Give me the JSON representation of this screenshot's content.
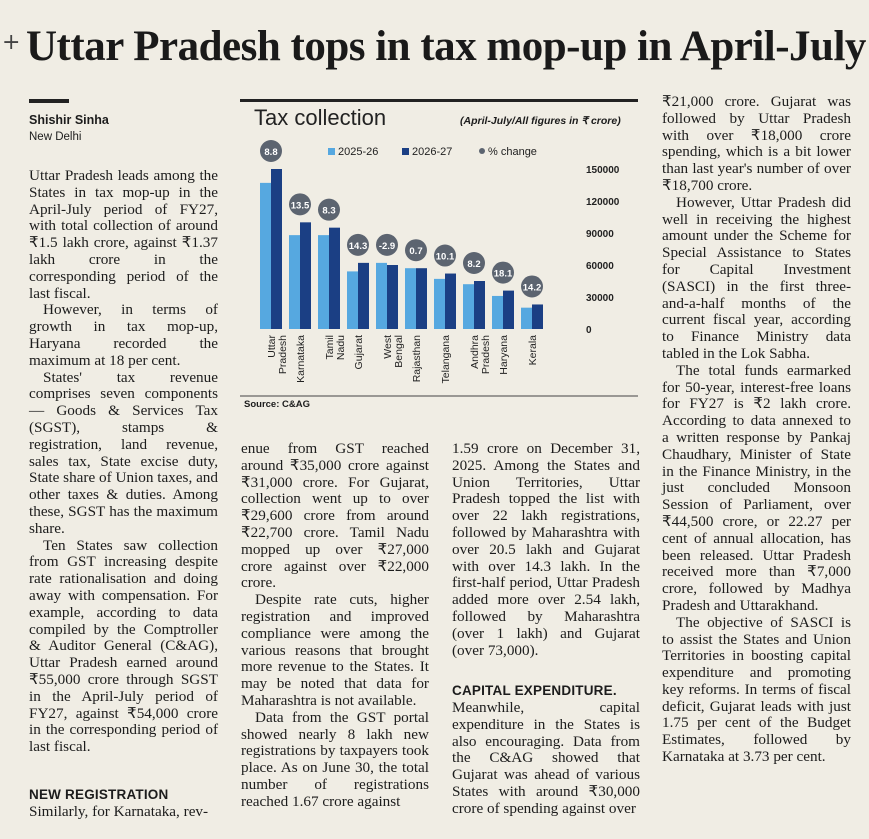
{
  "headline": {
    "marker": "+",
    "text": "Uttar Pradesh tops in tax mop-up in April-July"
  },
  "byline": {
    "author": "Shishir Sinha",
    "place": "New Delhi"
  },
  "chart": {
    "title": "Tax collection",
    "note": "(April-July/All figures in ₹ crore)",
    "source": "Source: C&AG",
    "colors": {
      "series1": "#56a8e0",
      "series2": "#1b3f84",
      "change": "#5c6470"
    }
  },
  "chart_data": {
    "type": "bar",
    "categories": [
      "Uttar Pradesh",
      "Karnataka",
      "Tamil Nadu",
      "Gujarat",
      "West Bengal",
      "Rajasthan",
      "Telangana",
      "Andhra Pradesh",
      "Haryana",
      "Kerala"
    ],
    "series": [
      {
        "name": "2025-26",
        "values": [
          137000,
          88000,
          88000,
          54000,
          62000,
          57000,
          47000,
          42000,
          31000,
          20000
        ]
      },
      {
        "name": "2026-27",
        "values": [
          150000,
          100000,
          95000,
          62000,
          60000,
          57000,
          52000,
          45000,
          36000,
          23000
        ]
      }
    ],
    "change_label": "% change",
    "change": [
      "8.8",
      "13.5",
      "8.3",
      "14.3",
      "-2.9",
      "0.7",
      "10.1",
      "8.2",
      "18.1",
      "14.2"
    ],
    "yticks": [
      "150000",
      "120000",
      "90000",
      "60000",
      "30000",
      "0"
    ],
    "ylim": [
      0,
      150000
    ],
    "legend_position": "top"
  },
  "col1": {
    "p1": "Uttar Pradesh leads among the States in tax mop-up in the April-July period of FY27, with total collection of around ₹1.5 lakh crore, against ₹1.37 lakh crore in the corresponding period of the last fiscal.",
    "p2": "However, in terms of growth in tax mop-up, Haryana recorded the maximum at 18 per cent.",
    "p3": "States' tax revenue comprises seven components — Goods & Services Tax (SGST), stamps & registration, land revenue, sales tax, State excise duty, State share of Union taxes, and other taxes & duties. Among these, SGST has the maximum share.",
    "p4": "Ten States saw collection from GST increasing despite rate rationalisation and doing away with compensation. For example, according to data compiled by the Comptroller & Auditor General (C&AG), Uttar Pradesh earned around ₹55,000 crore through SGST in the April-July period of FY27, against ₹54,000 crore in the corresponding period of last fiscal.",
    "subhead": "NEW REGISTRATION",
    "p5": "Similarly, for Karnataka, rev-"
  },
  "col2": {
    "p1": "enue from GST reached around ₹35,000 crore against ₹31,000 crore. For Gujarat, collection went up to over ₹29,600 crore from around ₹22,700 crore. Tamil Nadu mopped up over ₹27,000 crore against over ₹22,000 crore.",
    "p2": "Despite rate cuts, higher registration and improved compliance were among the various reasons that brought more revenue to the States. It may be noted that data for Maharashtra is not available.",
    "p3": "Data from the GST portal showed nearly 8 lakh new registrations by taxpayers took place. As on June 30, the total number of registrations reached 1.67 crore against"
  },
  "col3": {
    "p1": "1.59 crore on December 31, 2025. Among the States and Union Territories, Uttar Pradesh topped the list with over 22 lakh registrations, followed by Maharashtra with over 20.5 lakh and Gujarat with over 14.3 lakh. In the first-half period, Uttar Pradesh added more over 2.54 lakh, followed by Maharashtra (over 1 lakh) and Gujarat (over 73,000).",
    "subhead": "CAPITAL EXPENDITURE.",
    "p2": "Meanwhile, capital expenditure in the States is also encouraging. Data from the C&AG showed that Gujarat was ahead of various States with around ₹30,000 crore of spending against over"
  },
  "col4": {
    "p1": "₹21,000 crore. Gujarat was followed by Uttar Pradesh with over ₹18,000 crore spending, which is a bit lower than last year's number of over ₹18,700 crore.",
    "p2": "However, Uttar Pradesh did well in receiving the highest amount under the Scheme for Special Assistance to States for Capital Investment (SASCI) in the first three- and-a-half months of the current fiscal year, according to Finance Ministry data tabled in the Lok Sabha.",
    "p3": "The total funds earmarked for 50-year, interest-free loans for FY27 is ₹2 lakh crore. According to data annexed to a written response by Pankaj Chaudhary, Minister of State in the Finance Ministry, in the just concluded Monsoon Session of Parliament, over ₹44,500 crore, or 22.27 per cent of annual allocation, has been released. Uttar Pradesh received more than ₹7,000 crore, followed by Madhya Pradesh and Uttarakhand.",
    "p4": "The objective of SASCI is to assist the States and Union Territories in boosting capital expenditure and promoting key reforms. In terms of fiscal deficit, Gujarat leads with just 1.75 per cent of the Budget Estimates, followed by Karnataka at 3.73 per cent."
  }
}
